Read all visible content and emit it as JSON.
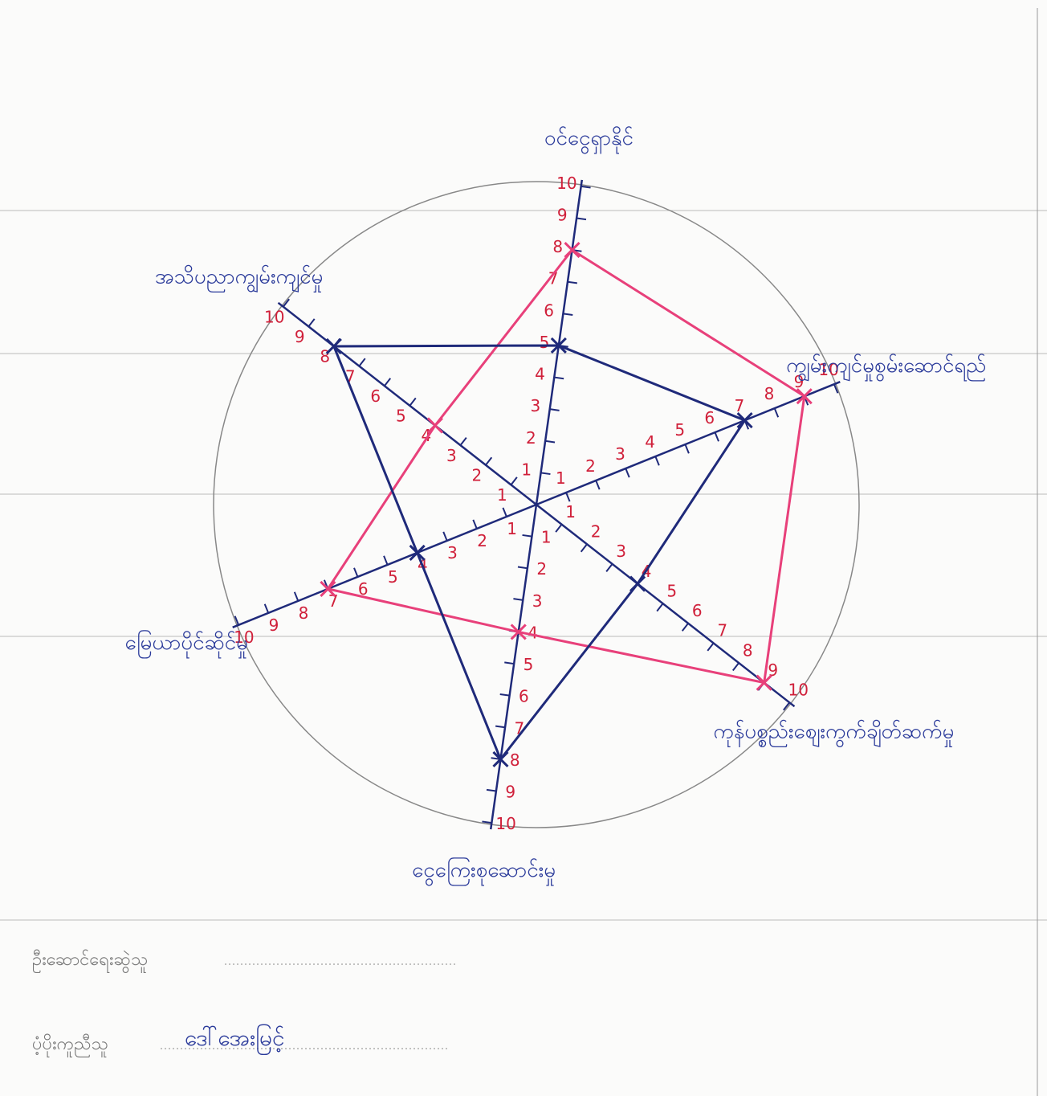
{
  "chart_data": {
    "type": "radar",
    "axes": [
      "ဝင်ငွေရှာနိုင်",
      "ကျွမ်းကျင်မှုစွမ်းဆောင်ရည်",
      "ကုန်ပစ္စည်းစျေးကွက်ချိတ်ဆက်မှု",
      "ငွေကြေးစုဆောင်းမှု",
      "မြေယာပိုင်ဆိုင်မှု",
      "အသိပညာကျွမ်းကျင်မှု"
    ],
    "rlim": [
      0,
      10
    ],
    "rticks": [
      1,
      2,
      3,
      4,
      5,
      6,
      7,
      8,
      9,
      10
    ],
    "series": [
      {
        "color": "#e8407a",
        "values": [
          8,
          9,
          9,
          4,
          7,
          4
        ]
      },
      {
        "color": "#1f2a7a",
        "values": [
          5,
          7,
          4,
          8,
          4,
          8
        ]
      }
    ]
  },
  "footer": {
    "fields": [
      {
        "label": "ဦးဆောင်ရေးဆွဲသူ"
      },
      {
        "label": "ပံ့ပိုးကူညီသူ",
        "value": "ဒေါ်အေးမြင့်"
      }
    ]
  }
}
